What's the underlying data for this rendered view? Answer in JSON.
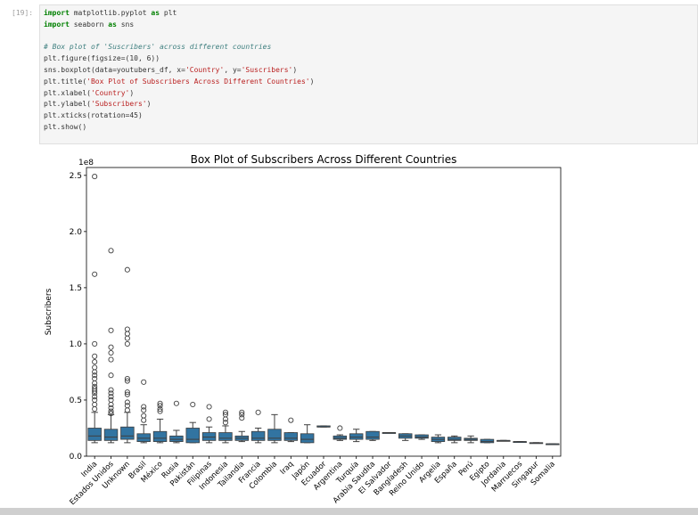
{
  "cell": {
    "prompt": "[19]:",
    "code_lines": [
      [
        {
          "t": "import",
          "c": "kw"
        },
        {
          "t": " matplotlib.pyplot ",
          "c": "fn"
        },
        {
          "t": "as",
          "c": "kw"
        },
        {
          "t": " plt",
          "c": "fn"
        }
      ],
      [
        {
          "t": "import",
          "c": "kw"
        },
        {
          "t": " seaborn ",
          "c": "fn"
        },
        {
          "t": "as",
          "c": "kw"
        },
        {
          "t": " sns",
          "c": "fn"
        }
      ],
      [],
      [
        {
          "t": "# Box plot of 'Suscribers' across different countries",
          "c": "cm"
        }
      ],
      [
        {
          "t": "plt.figure(figsize=(10, 6))",
          "c": "fn"
        }
      ],
      [
        {
          "t": "sns.boxplot(data=youtubers_df, x=",
          "c": "fn"
        },
        {
          "t": "'Country'",
          "c": "st"
        },
        {
          "t": ", y=",
          "c": "fn"
        },
        {
          "t": "'Suscribers'",
          "c": "st"
        },
        {
          "t": ")",
          "c": "fn"
        }
      ],
      [
        {
          "t": "plt.title(",
          "c": "fn"
        },
        {
          "t": "'Box Plot of Subscribers Across Different Countries'",
          "c": "st"
        },
        {
          "t": ")",
          "c": "fn"
        }
      ],
      [
        {
          "t": "plt.xlabel(",
          "c": "fn"
        },
        {
          "t": "'Country'",
          "c": "st"
        },
        {
          "t": ")",
          "c": "fn"
        }
      ],
      [
        {
          "t": "plt.ylabel(",
          "c": "fn"
        },
        {
          "t": "'Subscribers'",
          "c": "st"
        },
        {
          "t": ")",
          "c": "fn"
        }
      ],
      [
        {
          "t": "plt.xticks(rotation=45)",
          "c": "fn"
        }
      ],
      [
        {
          "t": "plt.show()",
          "c": "fn"
        }
      ]
    ]
  },
  "colors": {
    "box_fill": "#3274a1",
    "axis": "#000000",
    "code_bg": "#f5f5f5"
  },
  "chart_data": {
    "type": "box",
    "title": "Box Plot of Subscribers Across Different Countries",
    "xlabel": "Country",
    "ylabel": "Subscribers",
    "offset_label": "1e8",
    "y_ticks": [
      "0.0",
      "0.5",
      "1.0",
      "1.5",
      "2.0",
      "2.5"
    ],
    "y_tick_values": [
      0,
      0.5,
      1.0,
      1.5,
      2.0,
      2.5
    ],
    "ylim": [
      0,
      2.57
    ],
    "unit_scale": "1e8",
    "categories": [
      {
        "name": "India",
        "whislo": 0.12,
        "q1": 0.14,
        "med": 0.18,
        "q3": 0.25,
        "whishi": 0.39,
        "fliers": [
          0.42,
          0.46,
          0.5,
          0.53,
          0.56,
          0.58,
          0.6,
          0.62,
          0.65,
          0.69,
          0.72,
          0.75,
          0.79,
          0.84,
          0.89,
          1.0,
          1.62,
          2.49
        ]
      },
      {
        "name": "Estados Unidos",
        "whislo": 0.12,
        "q1": 0.14,
        "med": 0.17,
        "q3": 0.24,
        "whishi": 0.37,
        "fliers": [
          0.38,
          0.4,
          0.43,
          0.46,
          0.5,
          0.53,
          0.56,
          0.59,
          0.72,
          0.86,
          0.92,
          0.97,
          1.12,
          1.83
        ]
      },
      {
        "name": "Unknown",
        "whislo": 0.12,
        "q1": 0.15,
        "med": 0.18,
        "q3": 0.26,
        "whishi": 0.39,
        "fliers": [
          0.41,
          0.45,
          0.48,
          0.55,
          0.57,
          0.67,
          0.69,
          1.0,
          1.05,
          1.09,
          1.13,
          1.66
        ]
      },
      {
        "name": "Brasil",
        "whislo": 0.12,
        "q1": 0.13,
        "med": 0.16,
        "q3": 0.2,
        "whishi": 0.28,
        "fliers": [
          0.32,
          0.36,
          0.41,
          0.44,
          0.66
        ]
      },
      {
        "name": "México",
        "whislo": 0.12,
        "q1": 0.13,
        "med": 0.16,
        "q3": 0.22,
        "whishi": 0.33,
        "fliers": [
          0.4,
          0.42,
          0.45,
          0.47
        ]
      },
      {
        "name": "Rusia",
        "whislo": 0.12,
        "q1": 0.13,
        "med": 0.15,
        "q3": 0.18,
        "whishi": 0.23,
        "fliers": [
          0.47
        ]
      },
      {
        "name": "Pakistán",
        "whislo": 0.12,
        "q1": 0.12,
        "med": 0.15,
        "q3": 0.25,
        "whishi": 0.3,
        "fliers": [
          0.46
        ]
      },
      {
        "name": "Filipinas",
        "whislo": 0.12,
        "q1": 0.14,
        "med": 0.17,
        "q3": 0.21,
        "whishi": 0.26,
        "fliers": [
          0.33,
          0.44
        ]
      },
      {
        "name": "Indonesia",
        "whislo": 0.12,
        "q1": 0.14,
        "med": 0.16,
        "q3": 0.21,
        "whishi": 0.27,
        "fliers": [
          0.3,
          0.33,
          0.37,
          0.39
        ]
      },
      {
        "name": "Tailandia",
        "whislo": 0.13,
        "q1": 0.14,
        "med": 0.16,
        "q3": 0.18,
        "whishi": 0.22,
        "fliers": [
          0.34,
          0.37,
          0.39
        ]
      },
      {
        "name": "Francia",
        "whislo": 0.12,
        "q1": 0.14,
        "med": 0.16,
        "q3": 0.22,
        "whishi": 0.25,
        "fliers": [
          0.39
        ]
      },
      {
        "name": "Colombia",
        "whislo": 0.12,
        "q1": 0.14,
        "med": 0.16,
        "q3": 0.24,
        "whishi": 0.37,
        "fliers": []
      },
      {
        "name": "Iraq",
        "whislo": 0.13,
        "q1": 0.14,
        "med": 0.16,
        "q3": 0.21,
        "whishi": 0.21,
        "fliers": [
          0.32
        ]
      },
      {
        "name": "Japón",
        "whislo": 0.12,
        "q1": 0.12,
        "med": 0.15,
        "q3": 0.2,
        "whishi": 0.28,
        "fliers": []
      },
      {
        "name": "Ecuador",
        "whislo": 0.26,
        "q1": 0.26,
        "med": 0.26,
        "q3": 0.27,
        "whishi": 0.27,
        "fliers": []
      },
      {
        "name": "Argentina",
        "whislo": 0.14,
        "q1": 0.15,
        "med": 0.16,
        "q3": 0.18,
        "whishi": 0.19,
        "fliers": [
          0.25
        ]
      },
      {
        "name": "Turquía",
        "whislo": 0.13,
        "q1": 0.15,
        "med": 0.17,
        "q3": 0.2,
        "whishi": 0.24,
        "fliers": []
      },
      {
        "name": "Arabia Saudita",
        "whislo": 0.14,
        "q1": 0.15,
        "med": 0.17,
        "q3": 0.22,
        "whishi": 0.22,
        "fliers": []
      },
      {
        "name": "El Salvador",
        "whislo": 0.21,
        "q1": 0.21,
        "med": 0.21,
        "q3": 0.21,
        "whishi": 0.21,
        "fliers": []
      },
      {
        "name": "Bangladesh",
        "whislo": 0.14,
        "q1": 0.16,
        "med": 0.18,
        "q3": 0.2,
        "whishi": 0.2,
        "fliers": []
      },
      {
        "name": "Reino Unido",
        "whislo": 0.15,
        "q1": 0.16,
        "med": 0.17,
        "q3": 0.19,
        "whishi": 0.19,
        "fliers": []
      },
      {
        "name": "Argelia",
        "whislo": 0.12,
        "q1": 0.13,
        "med": 0.15,
        "q3": 0.17,
        "whishi": 0.19,
        "fliers": []
      },
      {
        "name": "España",
        "whislo": 0.12,
        "q1": 0.14,
        "med": 0.15,
        "q3": 0.17,
        "whishi": 0.18,
        "fliers": []
      },
      {
        "name": "Perú",
        "whislo": 0.12,
        "q1": 0.14,
        "med": 0.15,
        "q3": 0.16,
        "whishi": 0.18,
        "fliers": []
      },
      {
        "name": "Egipto",
        "whislo": 0.12,
        "q1": 0.12,
        "med": 0.13,
        "q3": 0.15,
        "whishi": 0.15,
        "fliers": []
      },
      {
        "name": "Jordania",
        "whislo": 0.14,
        "q1": 0.14,
        "med": 0.14,
        "q3": 0.14,
        "whishi": 0.14,
        "fliers": []
      },
      {
        "name": "Marruecos",
        "whislo": 0.13,
        "q1": 0.13,
        "med": 0.13,
        "q3": 0.13,
        "whishi": 0.13,
        "fliers": []
      },
      {
        "name": "Singapur",
        "whislo": 0.12,
        "q1": 0.12,
        "med": 0.12,
        "q3": 0.12,
        "whishi": 0.12,
        "fliers": []
      },
      {
        "name": "Somalia",
        "whislo": 0.11,
        "q1": 0.11,
        "med": 0.11,
        "q3": 0.11,
        "whishi": 0.11,
        "fliers": []
      }
    ],
    "grid": false,
    "legend": "none"
  }
}
